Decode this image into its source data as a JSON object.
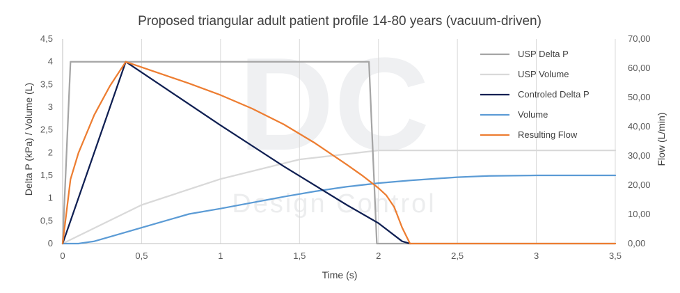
{
  "chart_data": {
    "type": "line",
    "title": "Proposed triangular adult patient profile 14-80 years (vacuum-driven)",
    "xlabel": "Time (s)",
    "ylabel": "Delta P (kPa) / Volume (L)",
    "y2label": "Flow (L/min)",
    "xlim": [
      0,
      3.5
    ],
    "ylim": [
      0,
      4.5
    ],
    "y2lim": [
      0,
      70
    ],
    "x_ticks": [
      "0",
      "0,5",
      "1",
      "1,5",
      "2",
      "2,5",
      "3",
      "3,5"
    ],
    "y_ticks": [
      "0",
      "0,5",
      "1",
      "1,5",
      "2",
      "2,5",
      "3",
      "3,5",
      "4",
      "4,5"
    ],
    "y2_ticks": [
      "0,00",
      "10,00",
      "20,00",
      "30,00",
      "40,00",
      "50,00",
      "60,00",
      "70,00"
    ],
    "grid": "vertical",
    "legend": "right",
    "watermark": {
      "logo": "DC",
      "text": "Design Control"
    },
    "series": [
      {
        "name": "USP Delta P",
        "axis": "left",
        "color": "#a5a5a5",
        "points": [
          [
            0,
            0
          ],
          [
            0.05,
            4
          ],
          [
            1.94,
            4
          ],
          [
            1.99,
            0
          ],
          [
            3.5,
            0
          ]
        ]
      },
      {
        "name": "USP Volume",
        "axis": "left",
        "color": "#d9d9d9",
        "points": [
          [
            0,
            0
          ],
          [
            0.5,
            0.85
          ],
          [
            1.0,
            1.42
          ],
          [
            1.5,
            1.85
          ],
          [
            2.0,
            2.05
          ],
          [
            3.5,
            2.05
          ]
        ]
      },
      {
        "name": "Controled Delta P",
        "axis": "left",
        "color": "#0f1f52",
        "points": [
          [
            0,
            0
          ],
          [
            0.4,
            4
          ],
          [
            0.7,
            3.3
          ],
          [
            1.0,
            2.6
          ],
          [
            1.4,
            1.7
          ],
          [
            1.8,
            0.85
          ],
          [
            2.0,
            0.45
          ],
          [
            2.15,
            0.05
          ],
          [
            2.2,
            0
          ]
        ]
      },
      {
        "name": "Volume",
        "axis": "left",
        "color": "#5b9bd5",
        "points": [
          [
            0,
            0
          ],
          [
            0.1,
            0
          ],
          [
            0.2,
            0.05
          ],
          [
            0.3,
            0.15
          ],
          [
            0.4,
            0.25
          ],
          [
            0.6,
            0.45
          ],
          [
            0.8,
            0.65
          ],
          [
            1.0,
            0.77
          ],
          [
            1.2,
            0.9
          ],
          [
            1.4,
            1.03
          ],
          [
            1.6,
            1.15
          ],
          [
            1.8,
            1.25
          ],
          [
            2.0,
            1.33
          ],
          [
            2.2,
            1.39
          ],
          [
            2.5,
            1.46
          ],
          [
            2.7,
            1.49
          ],
          [
            3.0,
            1.5
          ],
          [
            3.5,
            1.5
          ]
        ]
      },
      {
        "name": "Resulting Flow",
        "axis": "right",
        "color": "#ed7d31",
        "points": [
          [
            0,
            0
          ],
          [
            0.05,
            22
          ],
          [
            0.1,
            31
          ],
          [
            0.2,
            44
          ],
          [
            0.3,
            54
          ],
          [
            0.4,
            62.2
          ],
          [
            0.6,
            58.5
          ],
          [
            0.8,
            54.8
          ],
          [
            1.0,
            50.8
          ],
          [
            1.2,
            46.2
          ],
          [
            1.4,
            40.8
          ],
          [
            1.6,
            34.3
          ],
          [
            1.8,
            27.0
          ],
          [
            1.9,
            23.2
          ],
          [
            2.0,
            19.0
          ],
          [
            2.05,
            16.5
          ],
          [
            2.1,
            12.5
          ],
          [
            2.15,
            5.5
          ],
          [
            2.2,
            0
          ],
          [
            3.5,
            0
          ]
        ]
      }
    ]
  }
}
